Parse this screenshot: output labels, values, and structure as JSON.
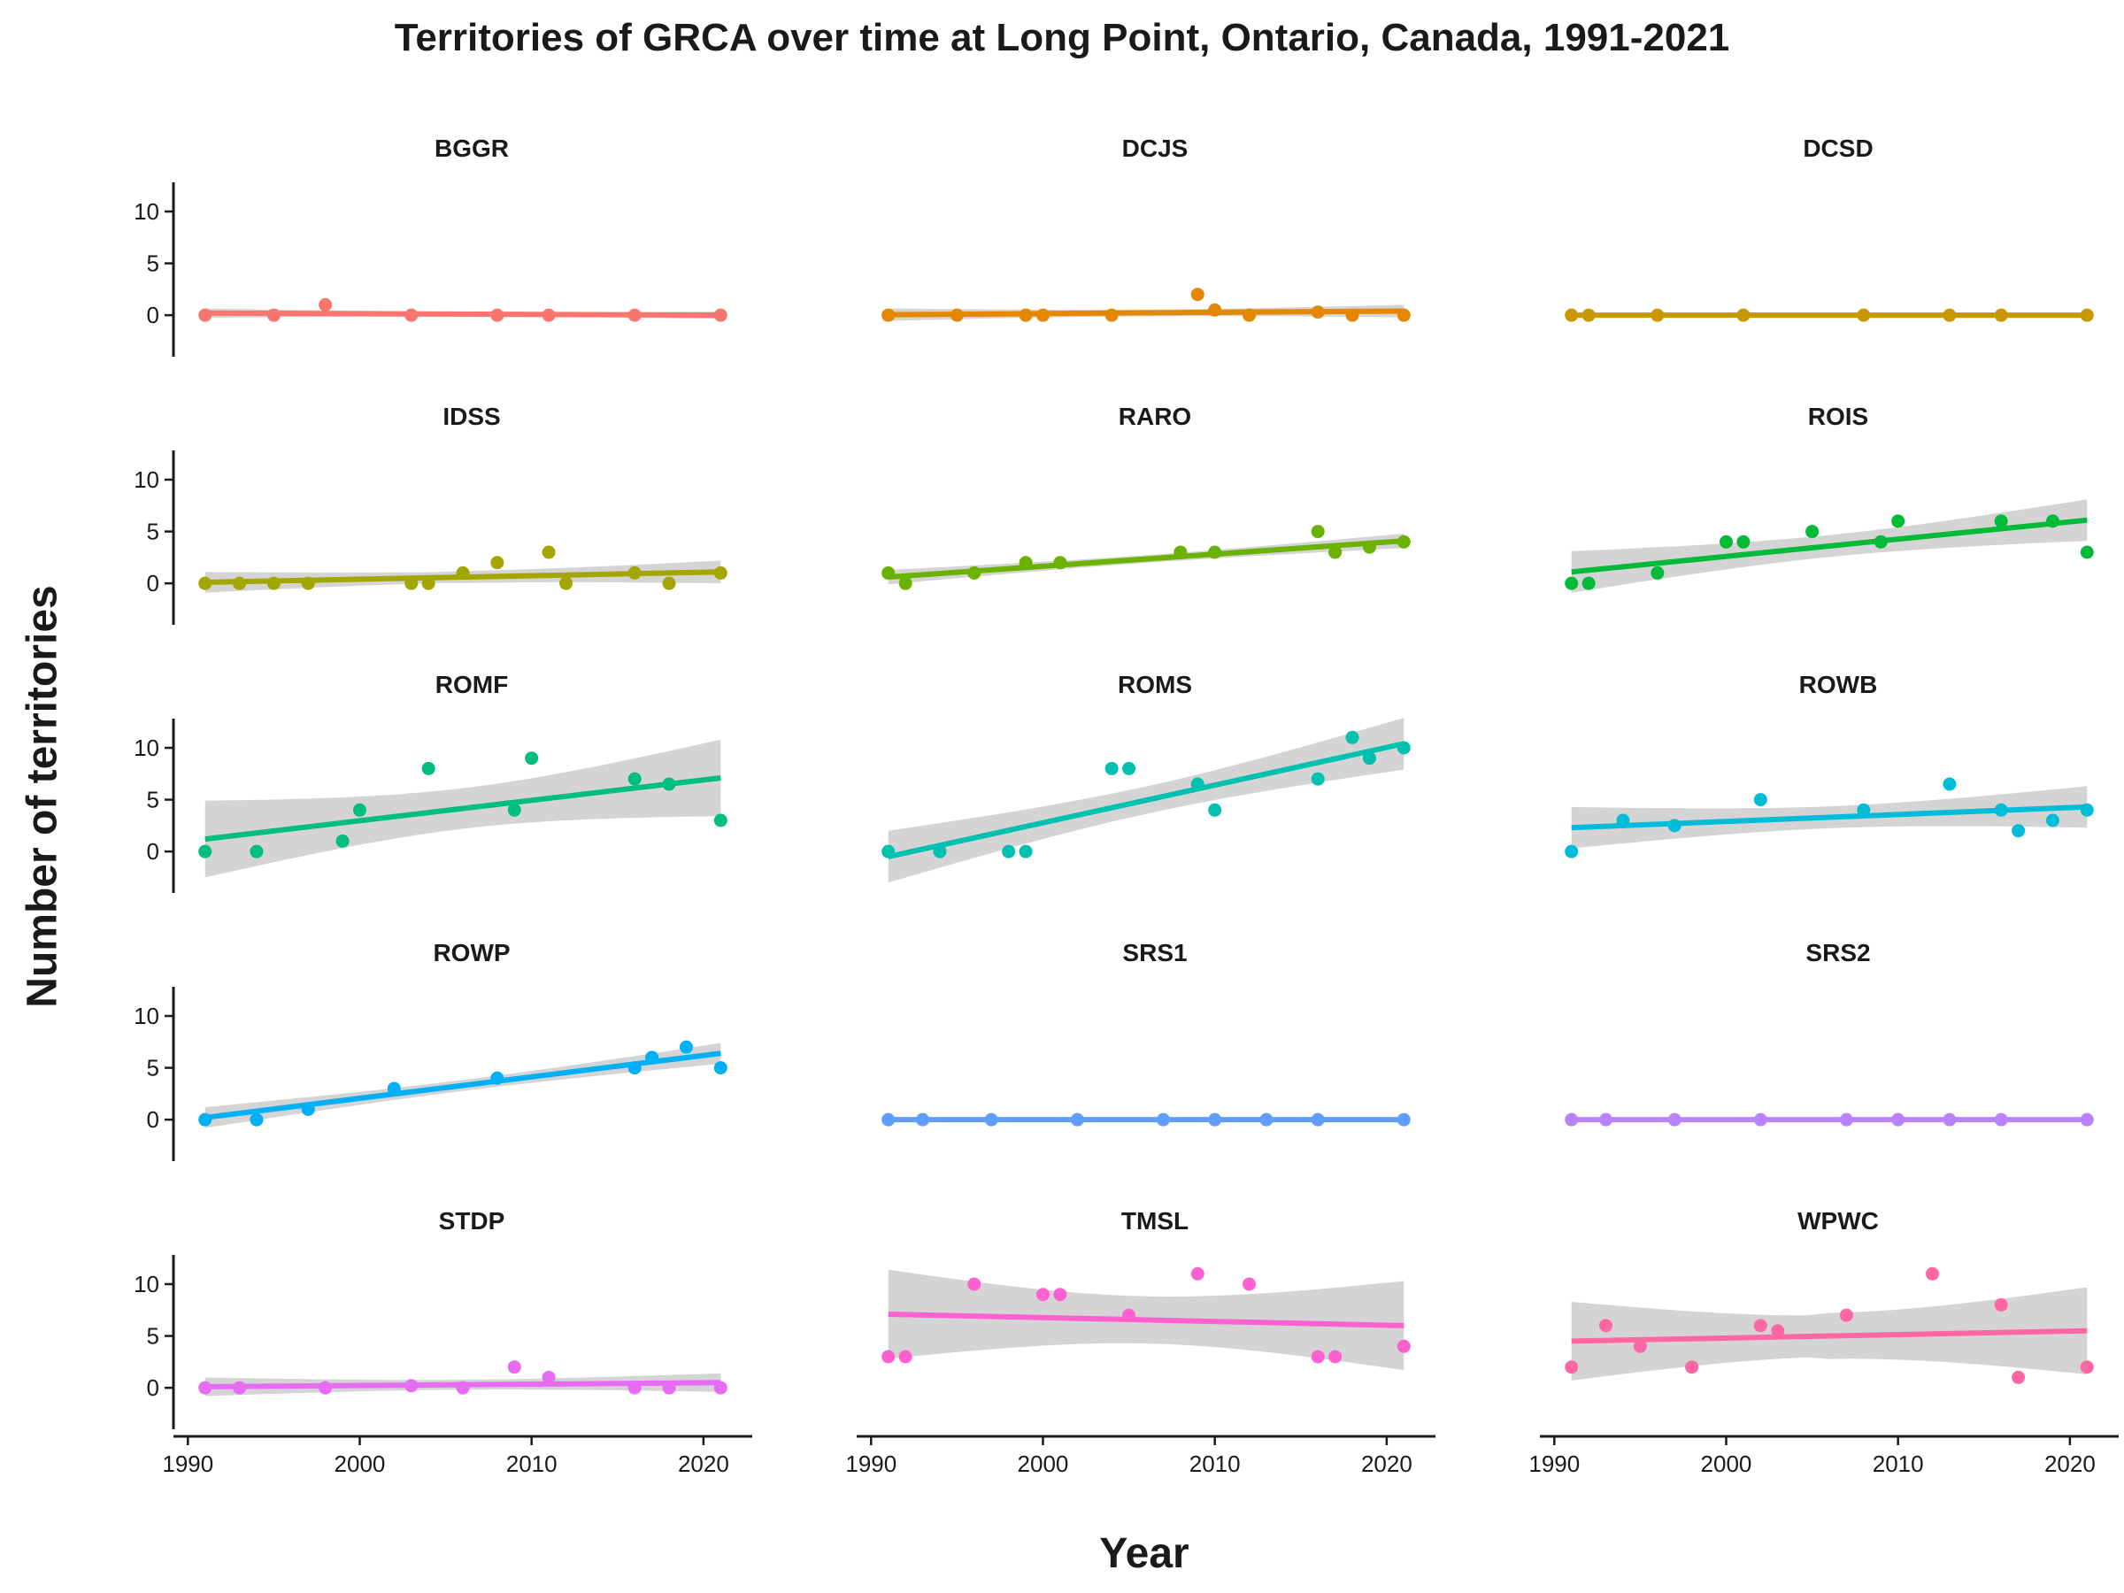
{
  "chart_data": {
    "type": "scatter",
    "title": "Territories of GRCA over time at Long Point, Ontario, Canada, 1991-2021",
    "xlabel": "Year",
    "ylabel": "Number of territories",
    "xlim": [
      1990,
      2021
    ],
    "ylim": [
      -4,
      13.5
    ],
    "x_ticks": [
      1990,
      2000,
      2010,
      2020
    ],
    "y_ticks": [
      0,
      5,
      10
    ],
    "grid": false,
    "legend": "none",
    "trend": "linear fit with shaded confidence band",
    "panels": [
      {
        "name": "BGGR",
        "color": "#F8766D",
        "x": [
          1991,
          1995,
          1998,
          2003,
          2008,
          2011,
          2016,
          2021
        ],
        "y": [
          0,
          0,
          1,
          0,
          0,
          0,
          0,
          0
        ],
        "fit": [
          0.2,
          0.0
        ],
        "band": [
          0.45,
          0.35
        ]
      },
      {
        "name": "DCJS",
        "color": "#E58700",
        "x": [
          1991,
          1995,
          1999,
          2000,
          2004,
          2009,
          2010,
          2012,
          2016,
          2018,
          2021
        ],
        "y": [
          0,
          0,
          0,
          0,
          0,
          2,
          0.5,
          0,
          0.3,
          0,
          0
        ],
        "fit": [
          0.05,
          0.4
        ],
        "band": [
          0.6,
          0.6
        ]
      },
      {
        "name": "DCSD",
        "color": "#C99800",
        "x": [
          1991,
          1992,
          1996,
          2001,
          2008,
          2013,
          2016,
          2021
        ],
        "y": [
          0,
          0,
          0,
          0,
          0,
          0,
          0,
          0
        ],
        "fit": [
          0,
          0
        ],
        "band": [
          0,
          0
        ]
      },
      {
        "name": "IDSS",
        "color": "#A3A500",
        "x": [
          1991,
          1993,
          1995,
          1997,
          2003,
          2004,
          2006,
          2008,
          2011,
          2012,
          2016,
          2018,
          2021
        ],
        "y": [
          0,
          0,
          0,
          0,
          0,
          0,
          1,
          2,
          3,
          0,
          1,
          0,
          1
        ],
        "fit": [
          0.1,
          1.1
        ],
        "band": [
          1.0,
          1.1
        ]
      },
      {
        "name": "RARO",
        "color": "#6BB100",
        "x": [
          1991,
          1992,
          1996,
          1999,
          2001,
          2008,
          2010,
          2016,
          2017,
          2019,
          2021
        ],
        "y": [
          1,
          0,
          1,
          2,
          2,
          3,
          3,
          5,
          3,
          3.5,
          4
        ],
        "fit": [
          0.6,
          4.1
        ],
        "band": [
          0.7,
          0.7
        ]
      },
      {
        "name": "ROIS",
        "color": "#00BA38",
        "x": [
          1991,
          1992,
          1996,
          2000,
          2001,
          2005,
          2009,
          2010,
          2016,
          2019,
          2021
        ],
        "y": [
          0,
          0,
          1,
          4,
          4,
          5,
          4,
          6,
          6,
          6,
          3
        ],
        "fit": [
          1.1,
          6.1
        ],
        "band": [
          2.0,
          2.0
        ]
      },
      {
        "name": "ROMF",
        "color": "#00BF7D",
        "x": [
          1991,
          1994,
          1999,
          2000,
          2004,
          2009,
          2010,
          2016,
          2018,
          2021
        ],
        "y": [
          0,
          0,
          1,
          4,
          8,
          4,
          9,
          7,
          6.5,
          3
        ],
        "fit": [
          1.2,
          7.1
        ],
        "band": [
          3.7,
          3.7
        ]
      },
      {
        "name": "ROMS",
        "color": "#00C0AF",
        "x": [
          1991,
          1994,
          1998,
          1999,
          2004,
          2005,
          2009,
          2010,
          2016,
          2018,
          2019,
          2021
        ],
        "y": [
          0,
          0,
          0,
          0,
          8,
          8,
          6.5,
          4,
          7,
          11,
          9,
          10
        ],
        "fit": [
          -0.5,
          10.4
        ],
        "band": [
          2.5,
          2.5
        ]
      },
      {
        "name": "ROWB",
        "color": "#00BCD8",
        "x": [
          1991,
          1994,
          1997,
          2002,
          2008,
          2013,
          2016,
          2017,
          2019,
          2021
        ],
        "y": [
          0,
          3,
          2.5,
          5,
          4,
          6.5,
          4,
          2,
          3,
          4
        ],
        "fit": [
          2.3,
          4.3
        ],
        "band": [
          2.0,
          2.0
        ]
      },
      {
        "name": "ROWP",
        "color": "#00B0F6",
        "x": [
          1991,
          1994,
          1997,
          2002,
          2008,
          2016,
          2017,
          2019,
          2021
        ],
        "y": [
          0,
          0,
          1,
          3,
          4,
          5,
          6,
          7,
          5
        ],
        "fit": [
          0.2,
          6.4
        ],
        "band": [
          1.0,
          1.0
        ]
      },
      {
        "name": "SRS1",
        "color": "#619CFF",
        "x": [
          1991,
          1993,
          1997,
          2002,
          2007,
          2010,
          2013,
          2016,
          2021
        ],
        "y": [
          0,
          0,
          0,
          0,
          0,
          0,
          0,
          0,
          0
        ],
        "fit": [
          0,
          0
        ],
        "band": [
          0,
          0
        ]
      },
      {
        "name": "SRS2",
        "color": "#B983FF",
        "x": [
          1991,
          1993,
          1997,
          2002,
          2007,
          2010,
          2013,
          2016,
          2021
        ],
        "y": [
          0,
          0,
          0,
          0,
          0,
          0,
          0,
          0,
          0
        ],
        "fit": [
          0,
          0
        ],
        "band": [
          0,
          0
        ]
      },
      {
        "name": "STDP",
        "color": "#E76BF3",
        "x": [
          1991,
          1993,
          1998,
          2003,
          2006,
          2009,
          2011,
          2016,
          2018,
          2021
        ],
        "y": [
          0,
          0,
          0,
          0.2,
          0,
          2,
          1,
          0,
          0,
          0
        ],
        "fit": [
          0.1,
          0.5
        ],
        "band": [
          0.9,
          0.9
        ]
      },
      {
        "name": "TMSL",
        "color": "#FD61D1",
        "x": [
          1991,
          1992,
          1996,
          2000,
          2001,
          2005,
          2009,
          2012,
          2016,
          2017,
          2021
        ],
        "y": [
          3,
          3,
          10,
          9,
          9,
          7,
          11,
          10,
          3,
          3,
          4
        ],
        "fit": [
          7.1,
          6.0
        ],
        "band": [
          4.3,
          4.3
        ]
      },
      {
        "name": "WPWC",
        "color": "#FF67A4",
        "x": [
          1991,
          1993,
          1995,
          1998,
          2002,
          2003,
          2007,
          2012,
          2016,
          2017,
          2021
        ],
        "y": [
          2,
          6,
          4,
          2,
          6,
          5.5,
          7,
          11,
          8,
          1,
          2
        ],
        "fit": [
          4.5,
          5.5
        ],
        "band": [
          3.8,
          4.2
        ]
      }
    ]
  }
}
